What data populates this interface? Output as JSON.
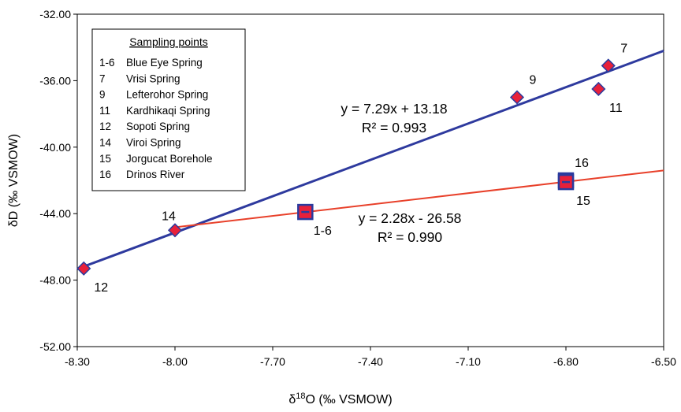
{
  "chart_data": {
    "type": "scatter",
    "xlabel": "δ18O (‰ VSMOW)",
    "ylabel": "δD (‰ VSMOW)",
    "xlim": [
      -8.3,
      -6.5
    ],
    "ylim": [
      -52,
      -32
    ],
    "x_ticks": [
      "-8.30",
      "-8.00",
      "-7.70",
      "-7.40",
      "-7.10",
      "-6.80",
      "-6.50"
    ],
    "y_ticks": [
      "-32.00",
      "-36.00",
      "-40.00",
      "-44.00",
      "-48.00",
      "-52.00"
    ],
    "grid": false,
    "legend": {
      "title": "Sampling points",
      "position": "top-left",
      "entries": [
        {
          "id": "1-6",
          "name": "Blue Eye Spring"
        },
        {
          "id": "7",
          "name": "Vrisi Spring"
        },
        {
          "id": "9",
          "name": "Lefterohor Spring"
        },
        {
          "id": "11",
          "name": "Kardhikaqi Spring"
        },
        {
          "id": "12",
          "name": "Sopoti Spring"
        },
        {
          "id": "14",
          "name": "Viroi Spring"
        },
        {
          "id": "15",
          "name": "Jorgucat Borehole"
        },
        {
          "id": "16",
          "name": "Drinos River"
        }
      ]
    },
    "series": [
      {
        "marker": "diamond",
        "color": "#e8203a",
        "border": "#2a3b9e",
        "points": [
          {
            "label": "7",
            "x": -6.67,
            "y": -35.1,
            "label_pos": "above-right"
          },
          {
            "label": "9",
            "x": -6.95,
            "y": -37.0,
            "label_pos": "above-right"
          },
          {
            "label": "11",
            "x": -6.7,
            "y": -36.5,
            "label_pos": "below-right"
          },
          {
            "label": "12",
            "x": -8.28,
            "y": -47.3,
            "label_pos": "below-right"
          },
          {
            "label": "14",
            "x": -8.0,
            "y": -45.0,
            "label_pos": "above-left"
          }
        ]
      },
      {
        "marker": "square",
        "color": "#e8203a",
        "border": "#2a3b9e",
        "points": [
          {
            "label": "1-6",
            "x": -7.6,
            "y": -43.9,
            "label_pos": "below-right"
          },
          {
            "label": "16",
            "x": -6.8,
            "y": -42.0,
            "label_pos": "above-right"
          },
          {
            "label": "15",
            "x": -6.8,
            "y": -42.1,
            "label_pos": "below-right"
          }
        ]
      }
    ],
    "trendlines": [
      {
        "equation": "y = 7.29x + 13.18",
        "r2": "R² = 0.993",
        "slope": 7.29,
        "intercept": 13.18,
        "x_range": [
          -8.3,
          -6.5
        ],
        "color": "#2e3a9e"
      },
      {
        "equation": "y = 2.28x - 26.58",
        "r2": "R² = 0.990",
        "slope": 2.28,
        "intercept": -26.58,
        "x_range": [
          -8.0,
          -6.5
        ],
        "color": "#e8402a"
      }
    ]
  }
}
